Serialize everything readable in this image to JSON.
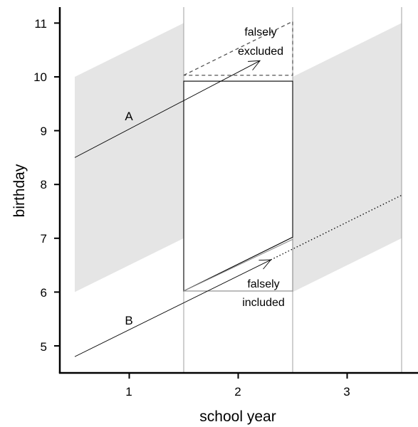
{
  "chart_data": {
    "type": "diagram",
    "xlabel": "school year",
    "ylabel": "birthday",
    "x_ticks": [
      "1",
      "2",
      "3"
    ],
    "y_ticks": [
      "5",
      "6",
      "7",
      "8",
      "9",
      "10",
      "11"
    ],
    "xlim": [
      0.5,
      3.5
    ],
    "ylim": [
      4.5,
      11.3
    ],
    "bands": [
      {
        "year": 1,
        "lower": [
          6,
          7
        ],
        "upper": [
          10,
          11
        ]
      },
      {
        "year": 3,
        "lower": [
          6,
          7
        ],
        "upper": [
          10,
          11
        ]
      }
    ],
    "trajectories": [
      {
        "label": "A",
        "from": [
          0.5,
          8.5
        ],
        "to": [
          2.2,
          10.3
        ],
        "style": "solid"
      },
      {
        "label": "B",
        "from": [
          0.5,
          4.8
        ],
        "to": [
          2.3,
          6.6
        ],
        "style": "solid"
      },
      {
        "label": "",
        "from": [
          2.3,
          6.6
        ],
        "to": [
          3.5,
          7.8
        ],
        "style": "dotted"
      }
    ],
    "annotations": [
      {
        "text": "falsely excluded",
        "lines": [
          "falsely",
          "excluded"
        ]
      },
      {
        "text": "falsely included",
        "lines": [
          "falsely",
          "included"
        ]
      }
    ],
    "colors": {
      "band": "#e5e5e5",
      "line": "#000000",
      "gridline": "#888888",
      "dashed": "#555555"
    }
  }
}
